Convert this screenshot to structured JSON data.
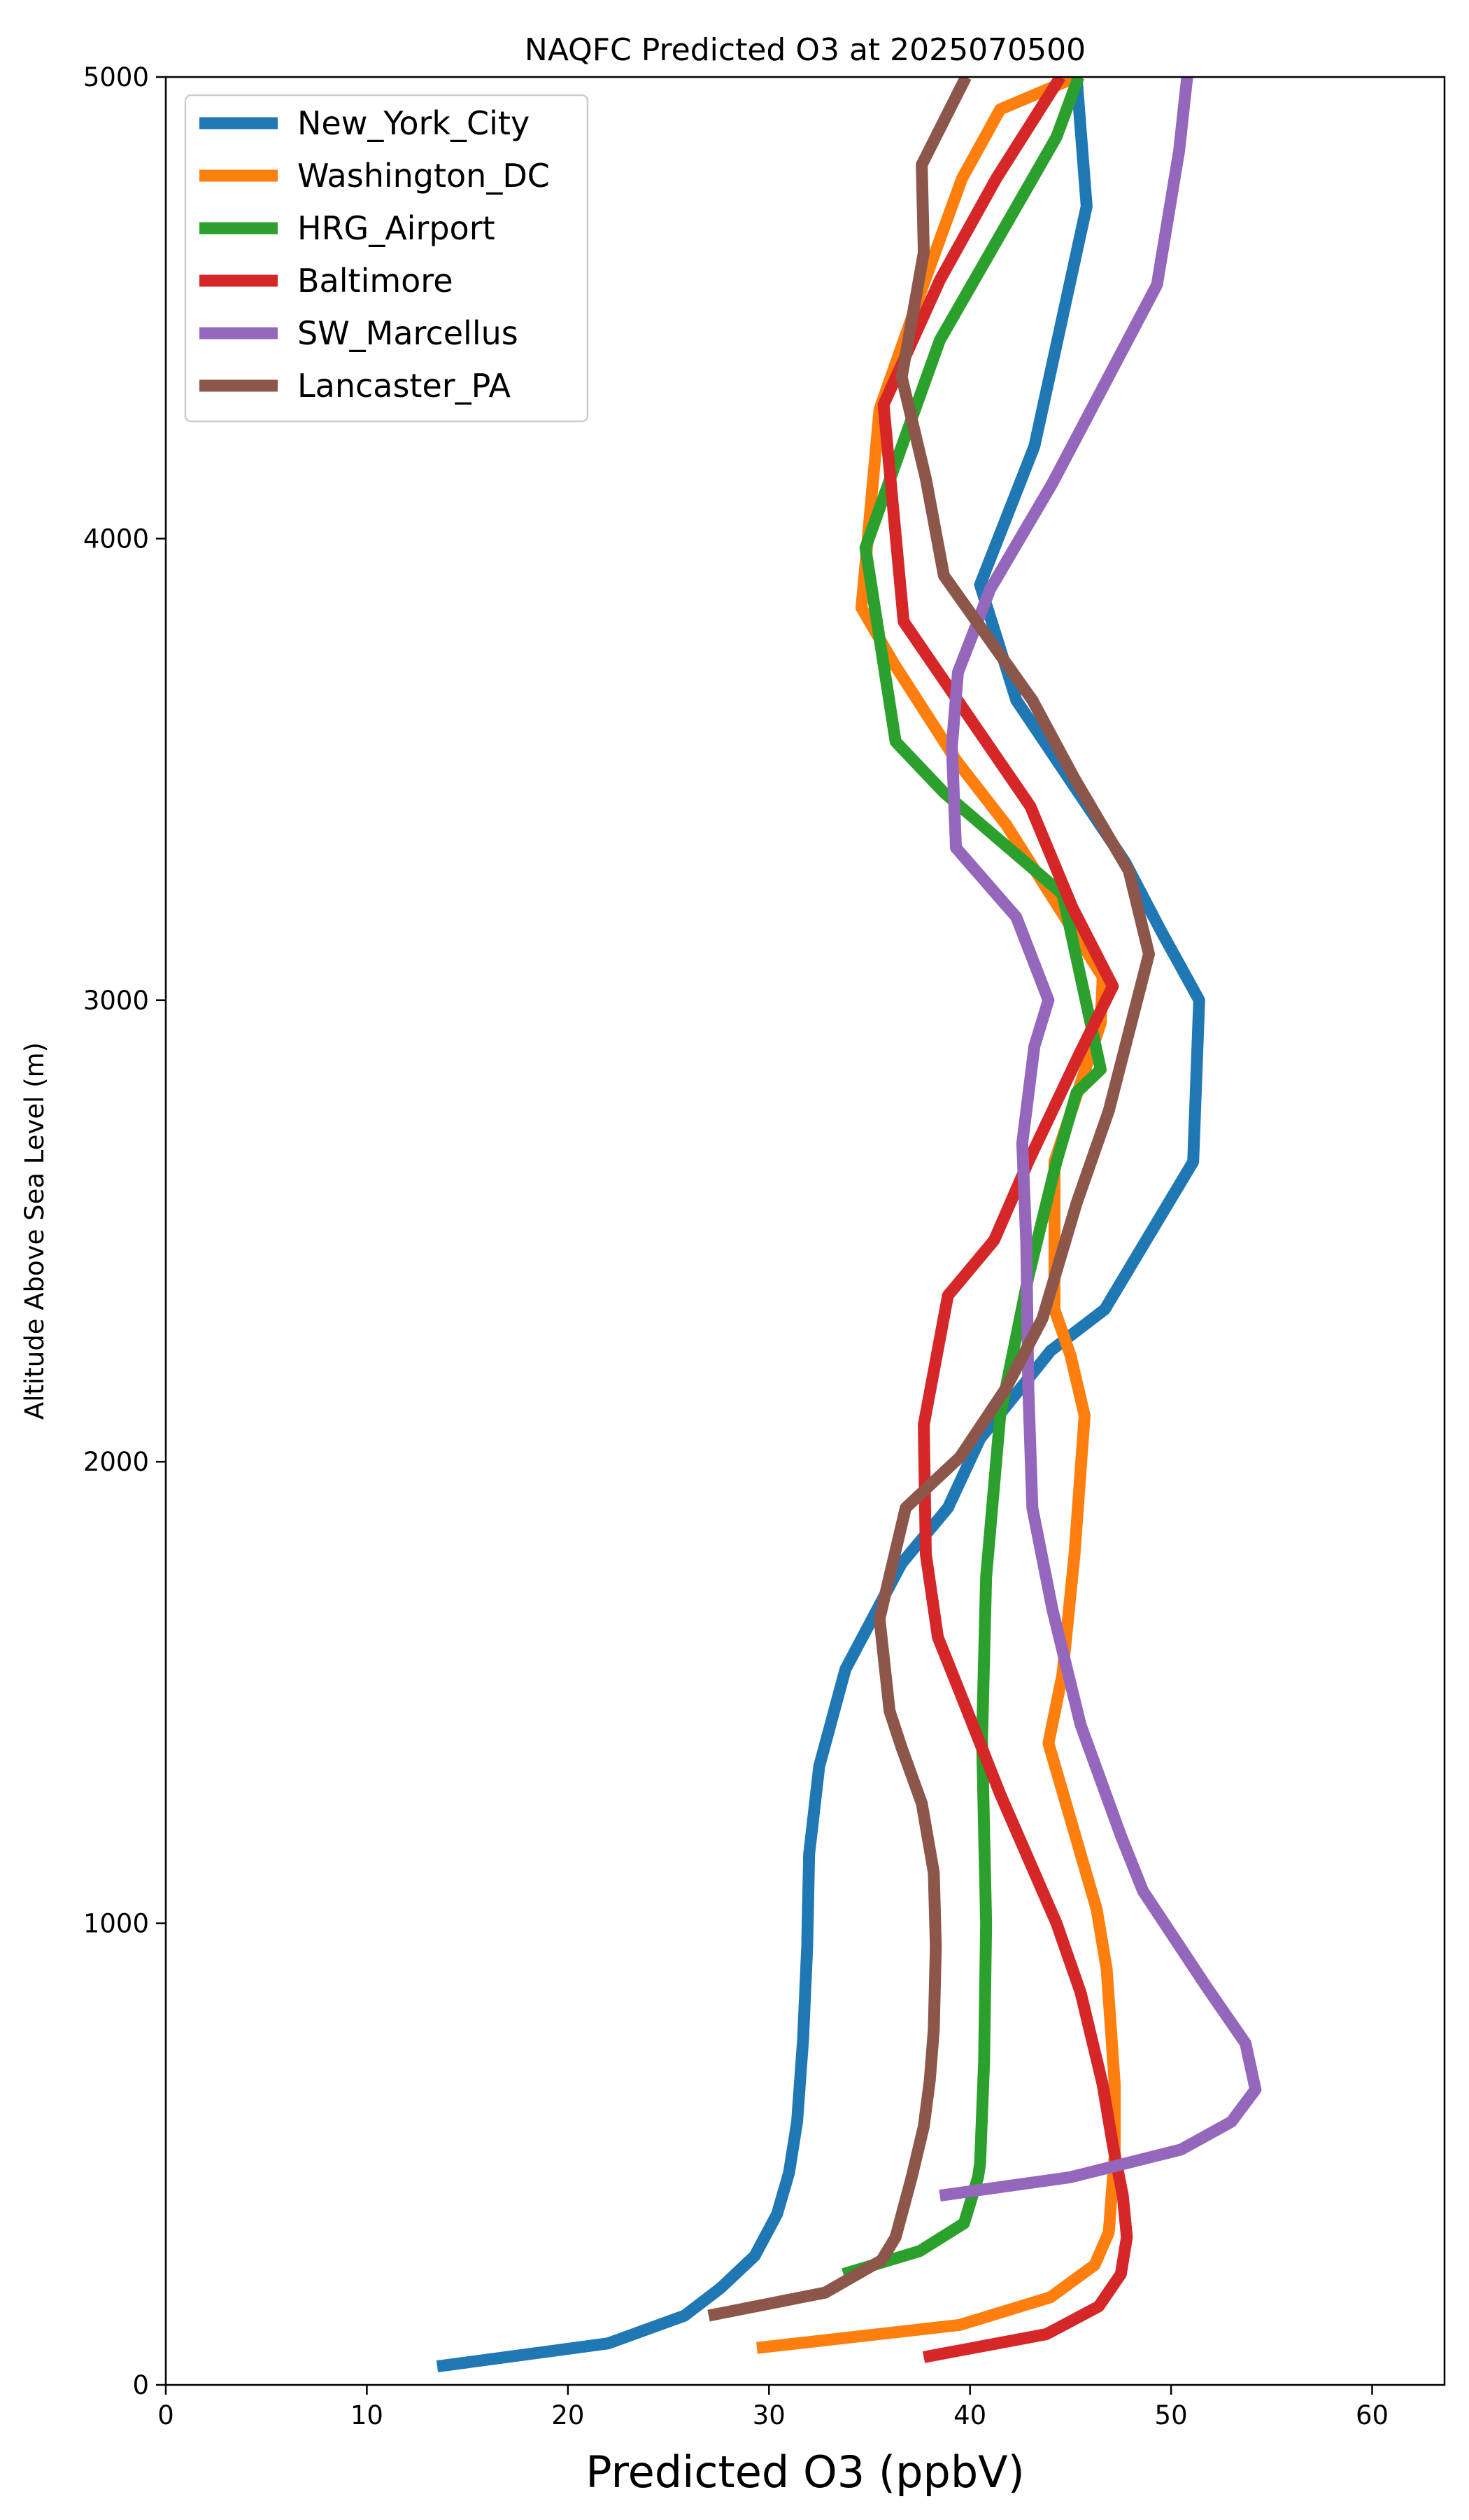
{
  "chart_data": {
    "type": "line",
    "title": "NAQFC Predicted O3 at 2025070500",
    "xlabel": "Predicted O3 (ppbV)",
    "ylabel": "Altitude Above Sea Level (m)",
    "xlim": [
      0,
      63.6
    ],
    "ylim": [
      0,
      5000
    ],
    "xticks": [
      0,
      10,
      20,
      30,
      40,
      50,
      60
    ],
    "yticks": [
      0,
      1000,
      2000,
      3000,
      4000,
      5000
    ],
    "xtick_labels": [
      "0",
      "10",
      "20",
      "30",
      "40",
      "50",
      "60"
    ],
    "ytick_labels": [
      "0",
      "1000",
      "2000",
      "3000",
      "4000",
      "5000"
    ],
    "grid": false,
    "legend_position": "top-left",
    "series": [
      {
        "name": "New_York_City",
        "color": "#1f77b4",
        "points": [
          [
            13.5,
            40
          ],
          [
            22,
            90
          ],
          [
            25.8,
            150
          ],
          [
            27.6,
            210
          ],
          [
            29.3,
            280
          ],
          [
            30.4,
            370
          ],
          [
            31,
            460
          ],
          [
            31.4,
            570
          ],
          [
            31.7,
            750
          ],
          [
            31.9,
            950
          ],
          [
            32,
            1150
          ],
          [
            32.5,
            1340
          ],
          [
            33.8,
            1550
          ],
          [
            36.6,
            1780
          ],
          [
            38.9,
            1900
          ],
          [
            40.5,
            2050
          ],
          [
            44,
            2240
          ],
          [
            46.7,
            2330
          ],
          [
            51.1,
            2650
          ],
          [
            51.4,
            3000
          ],
          [
            49.5,
            3150
          ],
          [
            47.7,
            3300
          ],
          [
            42.3,
            3650
          ],
          [
            40.5,
            3900
          ],
          [
            43.2,
            4200
          ],
          [
            45.8,
            4720
          ],
          [
            45.3,
            5000
          ]
        ]
      },
      {
        "name": "Washington_DC",
        "color": "#ff7f0e",
        "points": [
          [
            29.4,
            80
          ],
          [
            39.5,
            130
          ],
          [
            44,
            190
          ],
          [
            46.2,
            260
          ],
          [
            46.9,
            330
          ],
          [
            47.2,
            500
          ],
          [
            47.2,
            650
          ],
          [
            46.8,
            900
          ],
          [
            46.3,
            1030
          ],
          [
            43.9,
            1390
          ],
          [
            44.6,
            1540
          ],
          [
            45.2,
            1800
          ],
          [
            45.7,
            2100
          ],
          [
            45,
            2230
          ],
          [
            44.2,
            2330
          ],
          [
            44.2,
            2650
          ],
          [
            46.5,
            2950
          ],
          [
            46.6,
            3050
          ],
          [
            41.8,
            3380
          ],
          [
            39.3,
            3520
          ],
          [
            36.2,
            3730
          ],
          [
            34.6,
            3850
          ],
          [
            35.5,
            4280
          ],
          [
            37.6,
            4540
          ],
          [
            39.6,
            4780
          ],
          [
            41.5,
            4930
          ],
          [
            45.3,
            5000
          ]
        ]
      },
      {
        "name": "HRG_Airport",
        "color": "#2ca02c",
        "points": [
          [
            33.7,
            240
          ],
          [
            37.5,
            290
          ],
          [
            39.7,
            350
          ],
          [
            40.4,
            450
          ],
          [
            40.5,
            480
          ],
          [
            40.7,
            700
          ],
          [
            40.8,
            1000
          ],
          [
            40.7,
            1200
          ],
          [
            40.6,
            1400
          ],
          [
            40.8,
            1750
          ],
          [
            41.5,
            2100
          ],
          [
            42.9,
            2400
          ],
          [
            44.3,
            2650
          ],
          [
            45.3,
            2800
          ],
          [
            46.5,
            2850
          ],
          [
            44.6,
            3230
          ],
          [
            38.7,
            3450
          ],
          [
            36.3,
            3560
          ],
          [
            34.8,
            3980
          ],
          [
            38.5,
            4430
          ],
          [
            44.3,
            4870
          ],
          [
            45.4,
            5000
          ]
        ]
      },
      {
        "name": "Baltimore",
        "color": "#d62728",
        "points": [
          [
            37.7,
            60
          ],
          [
            43.8,
            110
          ],
          [
            46.4,
            170
          ],
          [
            47.5,
            240
          ],
          [
            47.8,
            320
          ],
          [
            47.6,
            410
          ],
          [
            47.1,
            520
          ],
          [
            46.6,
            650
          ],
          [
            45.5,
            850
          ],
          [
            44.3,
            1000
          ],
          [
            41.5,
            1280
          ],
          [
            39.5,
            1500
          ],
          [
            38.4,
            1620
          ],
          [
            37.8,
            1800
          ],
          [
            37.7,
            2080
          ],
          [
            38.9,
            2360
          ],
          [
            41.2,
            2480
          ],
          [
            42.9,
            2650
          ],
          [
            45.4,
            2880
          ],
          [
            47.1,
            3030
          ],
          [
            45.1,
            3200
          ],
          [
            43,
            3420
          ],
          [
            36.7,
            3820
          ],
          [
            35.7,
            4290
          ],
          [
            38.5,
            4560
          ],
          [
            41.3,
            4780
          ],
          [
            44.5,
            5000
          ]
        ]
      },
      {
        "name": "SW_Marcellus",
        "color": "#9467bd",
        "points": [
          [
            38.5,
            410
          ],
          [
            45,
            450
          ],
          [
            50.5,
            510
          ],
          [
            53,
            570
          ],
          [
            54.2,
            640
          ],
          [
            53.7,
            740
          ],
          [
            51.8,
            860
          ],
          [
            48.6,
            1070
          ],
          [
            47.5,
            1190
          ],
          [
            45.5,
            1430
          ],
          [
            44.1,
            1680
          ],
          [
            43.1,
            1900
          ],
          [
            42.9,
            2160
          ],
          [
            42.8,
            2470
          ],
          [
            42.6,
            2690
          ],
          [
            43.2,
            2900
          ],
          [
            43.9,
            3000
          ],
          [
            42.3,
            3180
          ],
          [
            39.3,
            3330
          ],
          [
            39.1,
            3550
          ],
          [
            39.4,
            3710
          ],
          [
            41,
            3890
          ],
          [
            44.1,
            4120
          ],
          [
            49.3,
            4550
          ],
          [
            50.4,
            4840
          ],
          [
            50.8,
            5000
          ]
        ]
      },
      {
        "name": "Lancaster_PA",
        "color": "#8c564b",
        "points": [
          [
            27,
            150
          ],
          [
            32.8,
            200
          ],
          [
            35.6,
            270
          ],
          [
            36.3,
            320
          ],
          [
            37.1,
            450
          ],
          [
            37.7,
            560
          ],
          [
            38,
            660
          ],
          [
            38.2,
            770
          ],
          [
            38.3,
            950
          ],
          [
            38.2,
            1110
          ],
          [
            37.6,
            1260
          ],
          [
            36.6,
            1380
          ],
          [
            36,
            1460
          ],
          [
            35.5,
            1660
          ],
          [
            36.8,
            1900
          ],
          [
            39.5,
            2010
          ],
          [
            41.8,
            2160
          ],
          [
            43.6,
            2310
          ],
          [
            45.3,
            2560
          ],
          [
            46.9,
            2760
          ],
          [
            48.9,
            3100
          ],
          [
            47.9,
            3280
          ],
          [
            45.2,
            3480
          ],
          [
            43.1,
            3650
          ],
          [
            38.7,
            3920
          ],
          [
            37.8,
            4130
          ],
          [
            36.6,
            4350
          ],
          [
            37.7,
            4620
          ],
          [
            37.6,
            4810
          ],
          [
            39.8,
            5000
          ]
        ]
      }
    ]
  }
}
